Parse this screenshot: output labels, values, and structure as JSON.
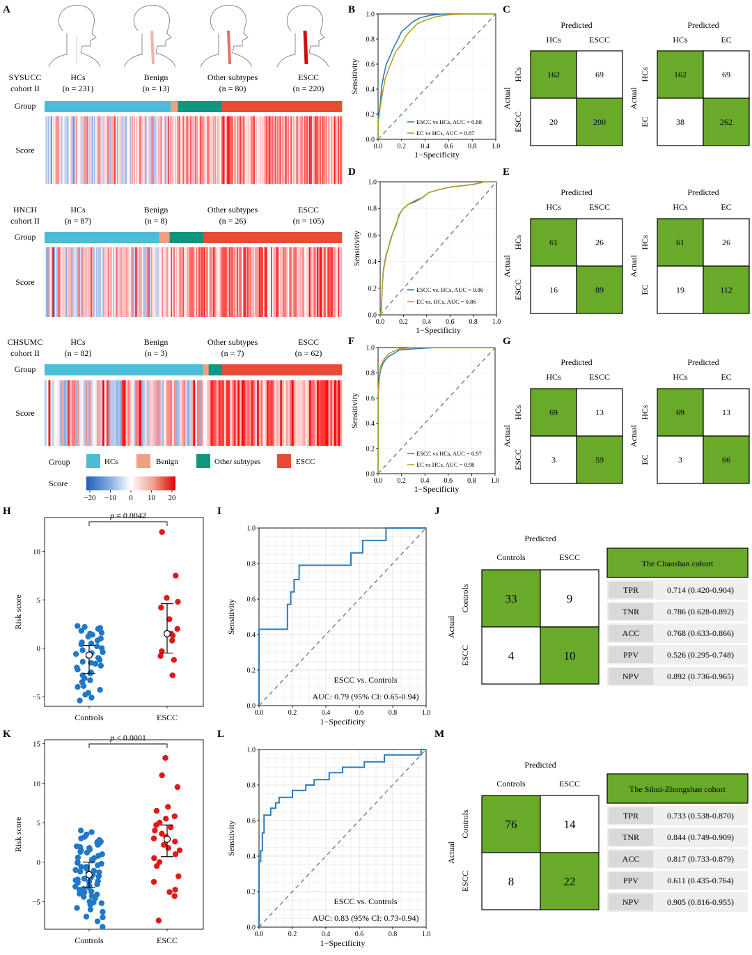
{
  "panels": {
    "A": "A",
    "B": "B",
    "C": "C",
    "D": "D",
    "E": "E",
    "F": "F",
    "G": "G",
    "H": "H",
    "I": "I",
    "J": "J",
    "K": "K",
    "L": "L",
    "M": "M"
  },
  "colors": {
    "hcs": "#4dbcd6",
    "benign": "#f0a080",
    "other": "#10967e",
    "escc": "#e84c35",
    "blue_pt": "#1f78c8",
    "red_pt": "#e01818",
    "roc_blue": "#2b7bba",
    "roc_gold": "#b8a020",
    "green": "#6aaa2a",
    "grey_cell": "#d9d9d9"
  },
  "panel_a": {
    "cohorts": [
      {
        "name_l1": "SYSUCC",
        "name_l2": "cohort II",
        "groups": [
          {
            "label": "HCs",
            "n": "(n = 231)",
            "count": 231,
            "key": "hcs"
          },
          {
            "label": "Benign",
            "n": "(n = 13)",
            "count": 13,
            "key": "benign"
          },
          {
            "label": "Other subtypes",
            "n": "(n = 80)",
            "count": 80,
            "key": "other"
          },
          {
            "label": "ESCC",
            "n": "(n = 220)",
            "count": 220,
            "key": "escc"
          }
        ]
      },
      {
        "name_l1": "HNCH",
        "name_l2": "cohort II",
        "groups": [
          {
            "label": "HCs",
            "n": "(n = 87)",
            "count": 87,
            "key": "hcs"
          },
          {
            "label": "Benign",
            "n": "(n = 8)",
            "count": 8,
            "key": "benign"
          },
          {
            "label": "Other subtypes",
            "n": "(n = 26)",
            "count": 26,
            "key": "other"
          },
          {
            "label": "ESCC",
            "n": "(n = 105)",
            "count": 105,
            "key": "escc"
          }
        ]
      },
      {
        "name_l1": "CHSUMC",
        "name_l2": "cohort II",
        "groups": [
          {
            "label": "HCs",
            "n": "(n = 82)",
            "count": 82,
            "key": "hcs"
          },
          {
            "label": "Benign",
            "n": "(n = 3)",
            "count": 3,
            "key": "benign"
          },
          {
            "label": "Other subtypes",
            "n": "(n = 7)",
            "count": 7,
            "key": "other"
          },
          {
            "label": "ESCC",
            "n": "(n = 62)",
            "count": 62,
            "key": "escc"
          }
        ]
      }
    ],
    "row_group": "Group",
    "row_score": "Score",
    "legend_group_title": "Group",
    "legend_items": [
      "HCs",
      "Benign",
      "Other subtypes",
      "ESCC"
    ],
    "legend_score_title": "Score",
    "score_ticks": [
      "−20",
      "−10",
      "0",
      "10",
      "20"
    ]
  },
  "chart_data": [
    {
      "id": "B",
      "type": "line",
      "xlabel": "1−Specificity",
      "ylabel": "Sensitivity",
      "xlim": [
        0,
        1
      ],
      "ylim": [
        0,
        1
      ],
      "ticks": [
        "0.0",
        "0.2",
        "0.4",
        "0.6",
        "0.8",
        "1.0"
      ],
      "series": [
        {
          "name": "ESCC vs HCs, AUC = 0.88",
          "color": "#2b7bba",
          "x": [
            0,
            0,
            0.02,
            0.03,
            0.05,
            0.07,
            0.1,
            0.13,
            0.17,
            0.2,
            0.25,
            0.3,
            0.36,
            0.45,
            0.55,
            0.7,
            1
          ],
          "y": [
            0,
            0.15,
            0.3,
            0.42,
            0.52,
            0.6,
            0.66,
            0.73,
            0.8,
            0.86,
            0.9,
            0.94,
            0.97,
            0.99,
            1,
            1,
            1
          ]
        },
        {
          "name": "EC vs HCs, AUC = 0.87",
          "color": "#b8a020",
          "x": [
            0,
            0,
            0.02,
            0.04,
            0.06,
            0.09,
            0.12,
            0.15,
            0.2,
            0.24,
            0.29,
            0.33,
            0.4,
            0.5,
            0.62,
            0.8,
            1
          ],
          "y": [
            0,
            0.12,
            0.27,
            0.38,
            0.48,
            0.56,
            0.63,
            0.7,
            0.76,
            0.83,
            0.88,
            0.92,
            0.95,
            0.98,
            0.995,
            1,
            1
          ]
        }
      ]
    },
    {
      "id": "D",
      "type": "line",
      "xlabel": "1−Specificity",
      "ylabel": "Sensitivity",
      "xlim": [
        0,
        1
      ],
      "ylim": [
        0,
        1
      ],
      "ticks": [
        "0.0",
        "0.2",
        "0.4",
        "0.6",
        "0.8",
        "1.0"
      ],
      "series": [
        {
          "name": "ESCC vs. HCs, AUC = 0.86",
          "color": "#2b7bba",
          "x": [
            0,
            0.01,
            0.02,
            0.03,
            0.05,
            0.07,
            0.09,
            0.11,
            0.14,
            0.16,
            0.2,
            0.24,
            0.3,
            0.36,
            0.42,
            0.5,
            0.6,
            0.7,
            0.8,
            0.9,
            1
          ],
          "y": [
            0,
            0.05,
            0.25,
            0.35,
            0.45,
            0.5,
            0.57,
            0.62,
            0.68,
            0.75,
            0.8,
            0.83,
            0.85,
            0.88,
            0.92,
            0.94,
            0.96,
            0.97,
            0.98,
            1,
            1
          ]
        },
        {
          "name": "EC vs. HCs, AUC = 0.86",
          "color": "#b8a020",
          "x": [
            0,
            0.01,
            0.02,
            0.03,
            0.05,
            0.07,
            0.09,
            0.11,
            0.14,
            0.17,
            0.2,
            0.24,
            0.3,
            0.36,
            0.42,
            0.5,
            0.6,
            0.7,
            0.8,
            0.9,
            1
          ],
          "y": [
            0,
            0.04,
            0.24,
            0.34,
            0.44,
            0.5,
            0.56,
            0.62,
            0.69,
            0.76,
            0.8,
            0.83,
            0.86,
            0.88,
            0.92,
            0.94,
            0.96,
            0.97,
            0.98,
            1,
            1
          ]
        }
      ]
    },
    {
      "id": "F",
      "type": "line",
      "xlabel": "1−Specificity",
      "ylabel": "Sensitivity",
      "xlim": [
        0,
        1
      ],
      "ylim": [
        0,
        1
      ],
      "ticks": [
        "0.0",
        "0.2",
        "0.4",
        "0.6",
        "0.8",
        "1.0"
      ],
      "series": [
        {
          "name": "ESCC vs HCs, AUC = 0.97",
          "color": "#2b7bba",
          "x": [
            0,
            0,
            0.01,
            0.02,
            0.04,
            0.06,
            0.09,
            0.13,
            0.18,
            0.3,
            0.5,
            0.8,
            1
          ],
          "y": [
            0,
            0.6,
            0.75,
            0.82,
            0.87,
            0.9,
            0.93,
            0.95,
            0.98,
            0.99,
            1,
            1,
            1
          ]
        },
        {
          "name": "EC vs HCs, AUC = 0.98",
          "color": "#b8a020",
          "x": [
            0,
            0,
            0.01,
            0.02,
            0.04,
            0.06,
            0.09,
            0.13,
            0.18,
            0.3,
            0.5,
            0.8,
            1
          ],
          "y": [
            0,
            0.63,
            0.78,
            0.85,
            0.89,
            0.92,
            0.95,
            0.97,
            0.99,
            1,
            1,
            1,
            1
          ]
        }
      ]
    },
    {
      "id": "I",
      "type": "line",
      "xlabel": "1−Specificity",
      "ylabel": "Sensitivity",
      "xlim": [
        0,
        1
      ],
      "ylim": [
        0,
        1
      ],
      "ticks": [
        "0.0",
        "0.2",
        "0.4",
        "0.6",
        "0.8",
        "1.0"
      ],
      "annotation1": "ESCC vs. Controls",
      "annotation2": "AUC: 0.79 (95% CI: 0.65-0.94)",
      "series": [
        {
          "name": "",
          "color": "#2b7bba",
          "x": [
            0,
            0,
            0.17,
            0.17,
            0.19,
            0.19,
            0.21,
            0.21,
            0.24,
            0.24,
            0.55,
            0.55,
            0.62,
            0.62,
            0.76,
            0.76,
            1
          ],
          "y": [
            0,
            0.43,
            0.43,
            0.57,
            0.57,
            0.64,
            0.64,
            0.71,
            0.71,
            0.79,
            0.79,
            0.86,
            0.86,
            0.93,
            0.93,
            1,
            1
          ]
        }
      ]
    },
    {
      "id": "L",
      "type": "line",
      "xlabel": "1−Specificity",
      "ylabel": "Sensitivity",
      "xlim": [
        0,
        1
      ],
      "ylim": [
        0,
        1
      ],
      "ticks": [
        "0.0",
        "0.2",
        "0.4",
        "0.6",
        "0.8",
        "1.0"
      ],
      "annotation1": "ESCC vs. Controls",
      "annotation2": "AUC: 0.83 (95% CI: 0.73-0.94)",
      "series": [
        {
          "name": "",
          "color": "#2b7bba",
          "x": [
            0,
            0,
            0.01,
            0.01,
            0.02,
            0.02,
            0.03,
            0.03,
            0.07,
            0.07,
            0.1,
            0.1,
            0.12,
            0.12,
            0.2,
            0.2,
            0.28,
            0.28,
            0.33,
            0.33,
            0.42,
            0.42,
            0.5,
            0.5,
            0.63,
            0.63,
            0.75,
            0.75,
            0.97,
            0.97,
            1
          ],
          "y": [
            0,
            0.37,
            0.37,
            0.43,
            0.43,
            0.53,
            0.53,
            0.63,
            0.63,
            0.67,
            0.67,
            0.7,
            0.7,
            0.73,
            0.73,
            0.77,
            0.77,
            0.8,
            0.8,
            0.83,
            0.83,
            0.87,
            0.87,
            0.9,
            0.9,
            0.93,
            0.93,
            0.97,
            0.97,
            1,
            1
          ]
        }
      ]
    },
    {
      "id": "H",
      "type": "scatter",
      "ylabel": "Risk score",
      "categories": [
        "Controls",
        "ESCC"
      ],
      "ylim": [
        -6,
        13.5
      ],
      "yticks": [
        -5,
        0,
        5,
        10
      ],
      "pvalue": "= 0.0042",
      "series": [
        {
          "name": "Controls",
          "values": [
            2.3,
            2.1,
            2.0,
            1.8,
            1.6,
            1.4,
            1.2,
            1.0,
            0.8,
            0.6,
            0.4,
            0.2,
            0.0,
            -0.2,
            -0.4,
            -0.6,
            -0.8,
            -1.0,
            -1.2,
            -1.4,
            -1.6,
            -1.8,
            -2.0,
            -2.2,
            -2.5,
            -2.8,
            -3.1,
            -3.5,
            -3.9,
            -4.3,
            -4.8,
            -5.1,
            -5.4,
            2.2,
            1.5,
            0.5,
            -0.5,
            -1.5,
            -2.6,
            -3.3,
            -4.0,
            -4.6
          ],
          "summary": {
            "median": -0.7,
            "q1": -2.6,
            "q3": 0.3
          }
        },
        {
          "name": "ESCC",
          "values": [
            12.0,
            7.5,
            5.2,
            4.8,
            4.2,
            3.0,
            2.0,
            1.5,
            1.3,
            0.8,
            -0.3,
            -0.8,
            -1.2,
            -2.8
          ],
          "summary": {
            "median": 1.5,
            "q1": -0.5,
            "q3": 4.6
          }
        }
      ]
    },
    {
      "id": "K",
      "type": "scatter",
      "ylabel": "Risk score",
      "categories": [
        "Controls",
        "ESCC"
      ],
      "ylim": [
        -8.5,
        15.5
      ],
      "yticks": [
        -5,
        0,
        5,
        10,
        15
      ],
      "pvalue": "< 0.0001",
      "series": [
        {
          "name": "Controls",
          "values": [
            4.0,
            3.5,
            3.0,
            2.8,
            2.5,
            2.2,
            2.0,
            1.8,
            1.5,
            1.3,
            1.0,
            0.8,
            0.5,
            0.3,
            0.0,
            -0.2,
            -0.4,
            -0.6,
            -0.8,
            -1.0,
            -1.2,
            -1.4,
            -1.6,
            -1.8,
            -2.0,
            -2.2,
            -2.4,
            -2.6,
            -2.8,
            -3.0,
            -3.2,
            -3.5,
            -3.8,
            -4.0,
            -4.3,
            -4.6,
            -5.0,
            -5.4,
            -5.8,
            -6.3,
            -6.9,
            -7.5,
            -8.2,
            3.8,
            3.2,
            2.6,
            1.6,
            0.6,
            -0.6,
            -1.5,
            -2.5,
            -3.4,
            -4.4,
            -5.2,
            -6.0,
            -7.0,
            2.4,
            1.2,
            -0.1,
            -1.1,
            -2.1,
            -3.1,
            -4.1,
            -5.1,
            1.9,
            0.2,
            -1.3,
            -2.3,
            -3.7
          ],
          "summary": {
            "median": -1.6,
            "q1": -3.2,
            "q3": 0.0
          }
        },
        {
          "name": "ESCC",
          "values": [
            13.2,
            11.0,
            9.5,
            7.0,
            6.5,
            5.8,
            5.5,
            5.0,
            4.7,
            4.4,
            4.0,
            3.6,
            3.2,
            3.0,
            2.6,
            2.2,
            1.8,
            1.5,
            1.0,
            0.5,
            0.0,
            -0.5,
            -1.8,
            -2.5,
            -3.5,
            -3.8,
            -4.3,
            -7.4
          ],
          "summary": {
            "median": 2.9,
            "q1": 0.7,
            "q3": 4.7
          }
        }
      ]
    },
    {
      "id": "C_left",
      "type": "heatmap",
      "title": "Predicted",
      "ylabel": "Actual",
      "cols": [
        "HCs",
        "ESCC"
      ],
      "rows": [
        "HCs",
        "ESCC"
      ],
      "cells": [
        [
          162,
          69
        ],
        [
          20,
          200
        ]
      ]
    },
    {
      "id": "C_right",
      "type": "heatmap",
      "title": "Predicted",
      "ylabel": "Actual",
      "cols": [
        "HCs",
        "EC"
      ],
      "rows": [
        "HCs",
        "EC"
      ],
      "cells": [
        [
          162,
          69
        ],
        [
          38,
          262
        ]
      ]
    },
    {
      "id": "E_left",
      "type": "heatmap",
      "title": "Predicted",
      "ylabel": "Actual",
      "cols": [
        "HCs",
        "ESCC"
      ],
      "rows": [
        "HCs",
        "ESCC"
      ],
      "cells": [
        [
          61,
          26
        ],
        [
          16,
          89
        ]
      ]
    },
    {
      "id": "E_right",
      "type": "heatmap",
      "title": "Predicted",
      "ylabel": "Actual",
      "cols": [
        "HCs",
        "EC"
      ],
      "rows": [
        "HCs",
        "EC"
      ],
      "cells": [
        [
          61,
          26
        ],
        [
          19,
          112
        ]
      ]
    },
    {
      "id": "G_left",
      "type": "heatmap",
      "title": "Predicted",
      "ylabel": "Actual",
      "cols": [
        "HCs",
        "ESCC"
      ],
      "rows": [
        "HCs",
        "ESCC"
      ],
      "cells": [
        [
          69,
          13
        ],
        [
          3,
          59
        ]
      ]
    },
    {
      "id": "G_right",
      "type": "heatmap",
      "title": "Predicted",
      "ylabel": "Actual",
      "cols": [
        "HCs",
        "EC"
      ],
      "rows": [
        "HCs",
        "EC"
      ],
      "cells": [
        [
          69,
          13
        ],
        [
          3,
          66
        ]
      ]
    },
    {
      "id": "J_matrix",
      "type": "heatmap",
      "title": "Predicted",
      "ylabel": "Actual",
      "cols": [
        "Controls",
        "ESCC"
      ],
      "rows": [
        "Controls",
        "ESCC"
      ],
      "cells": [
        [
          33,
          9
        ],
        [
          4,
          10
        ]
      ]
    },
    {
      "id": "M_matrix",
      "type": "heatmap",
      "title": "Predicted",
      "ylabel": "Actual",
      "cols": [
        "Controls",
        "ESCC"
      ],
      "rows": [
        "Controls",
        "ESCC"
      ],
      "cells": [
        [
          76,
          14
        ],
        [
          8,
          22
        ]
      ]
    },
    {
      "id": "J_table",
      "type": "table",
      "title": "The Chaoshan cohort",
      "rows": [
        [
          "TPR",
          "0.714 (0.420-0.904)"
        ],
        [
          "TNR",
          "0.786 (0.628-0.892)"
        ],
        [
          "ACC",
          "0.768 (0.633-0.866)"
        ],
        [
          "PPV",
          "0.526 (0.295-0.748)"
        ],
        [
          "NPV",
          "0.892 (0.736-0.965)"
        ]
      ]
    },
    {
      "id": "M_table",
      "type": "table",
      "title": "The Sihui-Zhongshan cohort",
      "rows": [
        [
          "TPR",
          "0.733 (0.538-0.870)"
        ],
        [
          "TNR",
          "0.844 (0.749-0.909)"
        ],
        [
          "ACC",
          "0.817 (0.733-0.879)"
        ],
        [
          "PPV",
          "0.611 (0.435-0.764)"
        ],
        [
          "NPV",
          "0.905 (0.816-0.955)"
        ]
      ]
    }
  ]
}
